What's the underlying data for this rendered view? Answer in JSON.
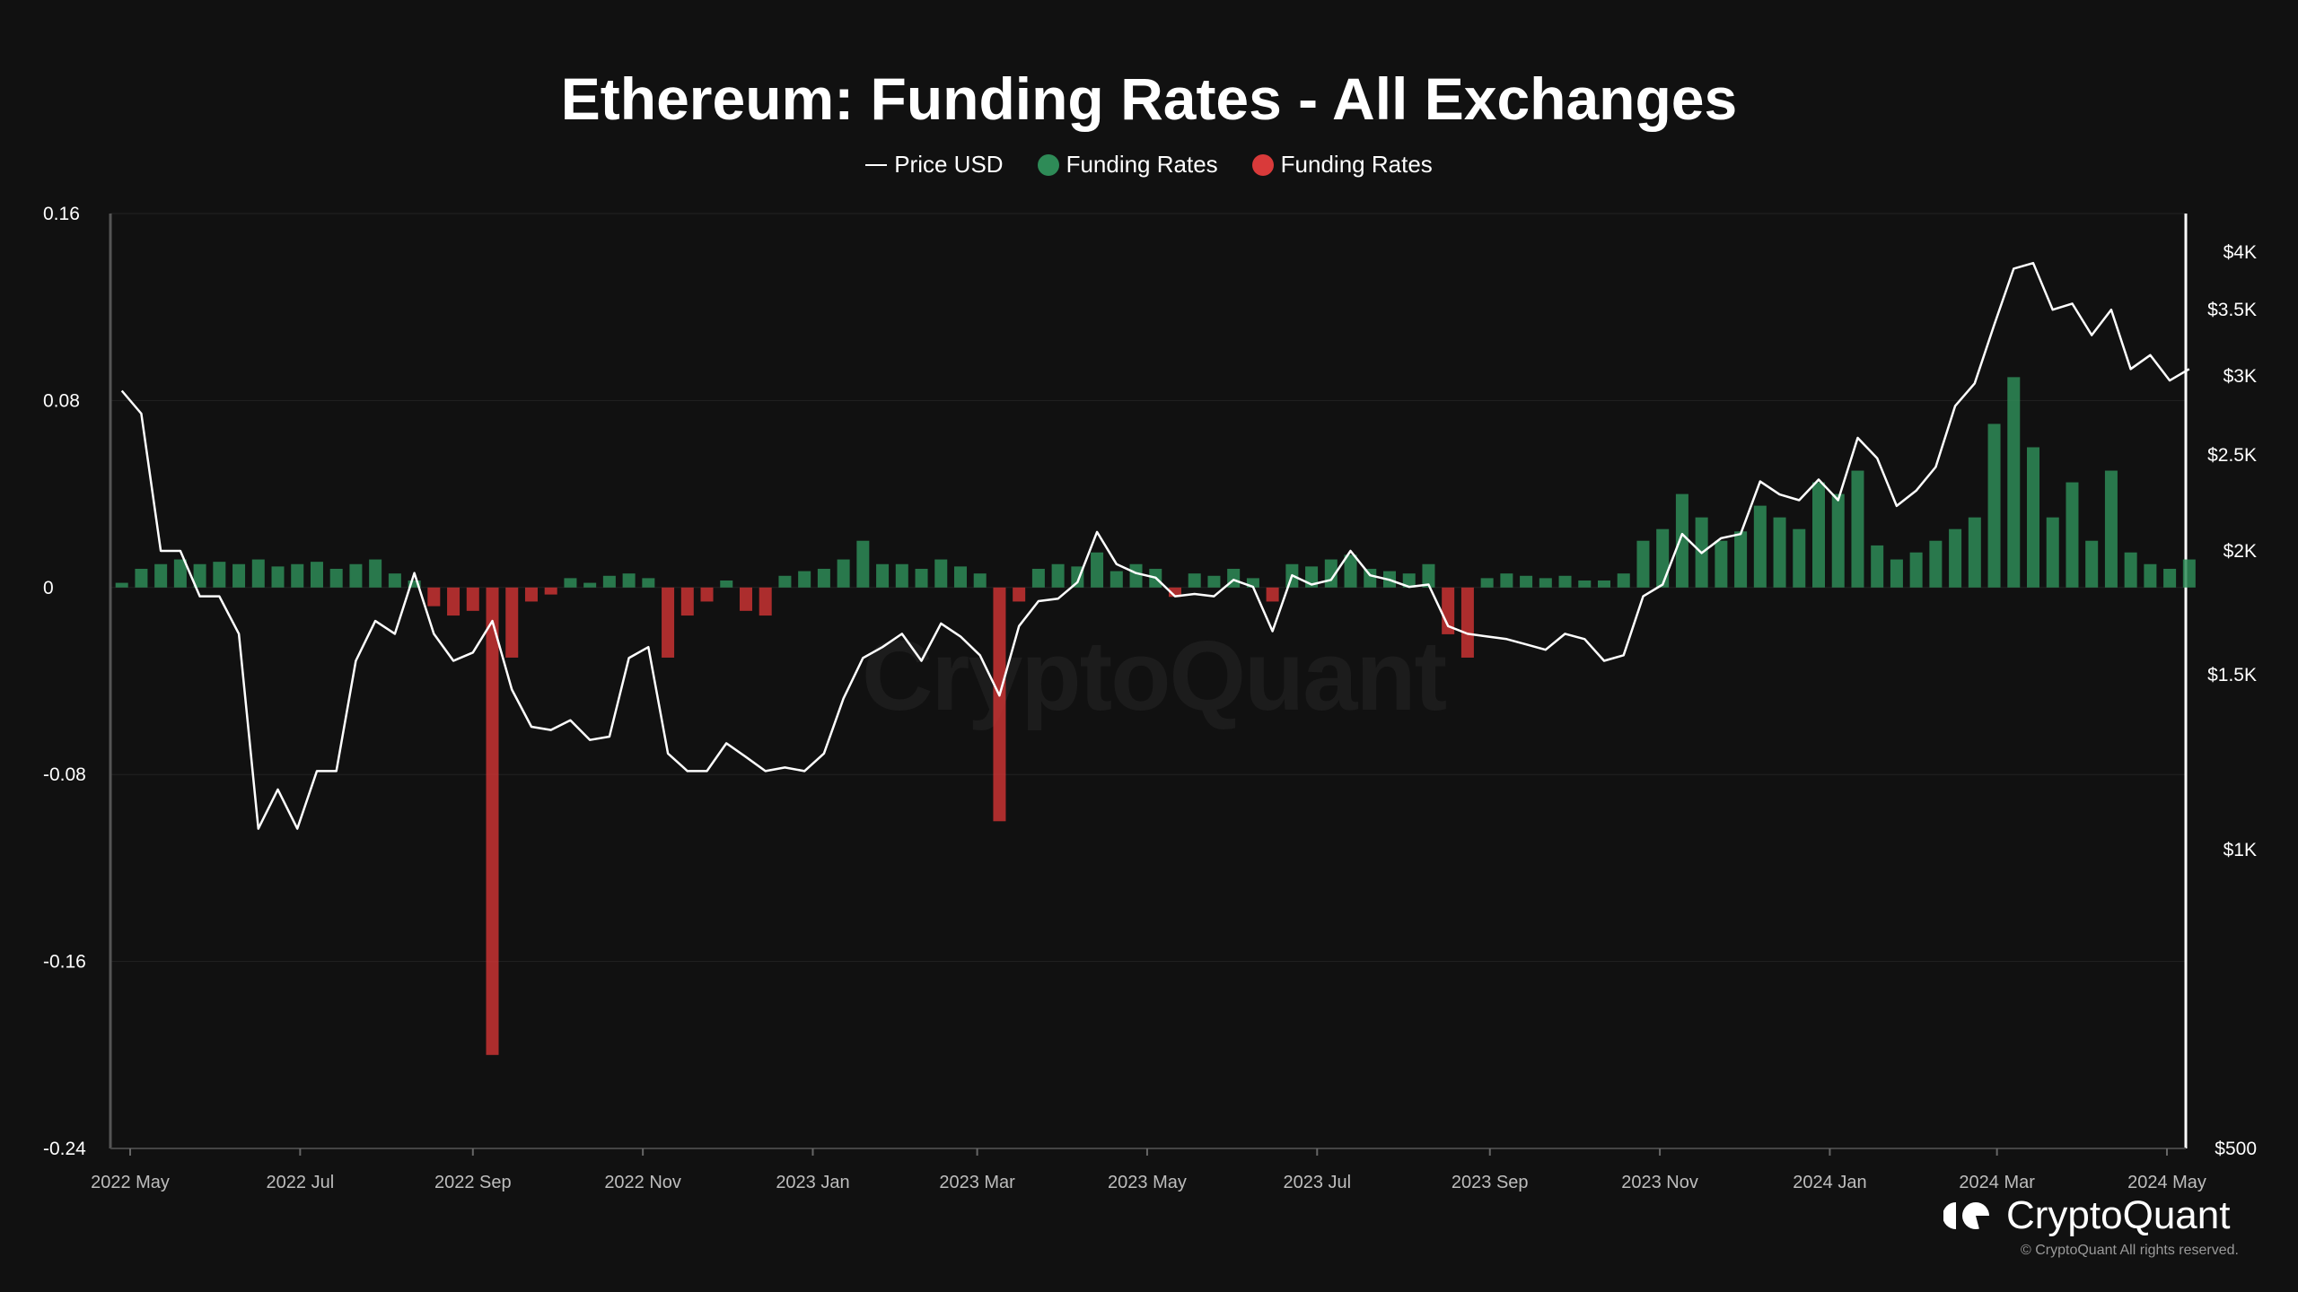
{
  "chart_data": {
    "type": "bar+line",
    "title": "Ethereum: Funding Rates - All Exchanges",
    "legend": [
      {
        "label": "Price USD",
        "color": "#ffffff",
        "kind": "line"
      },
      {
        "label": "Funding Rates",
        "color": "#2e8b57",
        "kind": "dot"
      },
      {
        "label": "Funding Rates",
        "color": "#d93a3a",
        "kind": "dot"
      }
    ],
    "legend_position": "top-center",
    "x_start": "2022-04-28",
    "x_step_days": 7,
    "x_ticks": [
      "2022 May",
      "2022 Jul",
      "2022 Sep",
      "2022 Nov",
      "2023 Jan",
      "2023 Mar",
      "2023 May",
      "2023 Jul",
      "2023 Sep",
      "2023 Nov",
      "2024 Jan",
      "2024 Mar",
      "2024 May"
    ],
    "x_tick_dates": [
      "2022-05-01",
      "2022-07-01",
      "2022-09-01",
      "2022-11-01",
      "2023-01-01",
      "2023-03-01",
      "2023-05-01",
      "2023-07-01",
      "2023-09-01",
      "2023-11-01",
      "2024-01-01",
      "2024-03-01",
      "2024-05-01"
    ],
    "left_axis": {
      "ticks": [
        "0.16",
        "0.08",
        "0",
        "-0.08",
        "-0.16",
        "-0.24"
      ],
      "values": [
        0.16,
        0.08,
        0,
        -0.08,
        -0.16,
        -0.24
      ],
      "ylim": [
        -0.24,
        0.16
      ]
    },
    "right_axis": {
      "scale": "log",
      "ticks": [
        "$4K",
        "$3.5K",
        "$3K",
        "$2.5K",
        "$2K",
        "$1.5K",
        "$1K",
        "$500"
      ],
      "values": [
        4000,
        3500,
        3000,
        2500,
        2000,
        1500,
        1000,
        500
      ],
      "ylim": [
        500,
        4375
      ]
    },
    "grid": true,
    "price_usd": [
      2900,
      2750,
      2000,
      2000,
      1800,
      1800,
      1650,
      1050,
      1150,
      1050,
      1200,
      1200,
      1550,
      1700,
      1650,
      1900,
      1650,
      1550,
      1580,
      1700,
      1450,
      1330,
      1320,
      1350,
      1290,
      1300,
      1560,
      1600,
      1250,
      1200,
      1200,
      1280,
      1240,
      1200,
      1210,
      1200,
      1250,
      1420,
      1560,
      1600,
      1650,
      1550,
      1690,
      1640,
      1570,
      1430,
      1680,
      1780,
      1790,
      1860,
      2090,
      1940,
      1900,
      1880,
      1800,
      1810,
      1800,
      1870,
      1840,
      1660,
      1890,
      1850,
      1870,
      2000,
      1890,
      1870,
      1840,
      1850,
      1680,
      1650,
      1640,
      1630,
      1610,
      1590,
      1650,
      1630,
      1550,
      1570,
      1800,
      1850,
      2080,
      1990,
      2060,
      2080,
      2350,
      2280,
      2250,
      2360,
      2250,
      2600,
      2480,
      2220,
      2300,
      2430,
      2800,
      2950,
      3380,
      3850,
      3900,
      3500,
      3550,
      3300,
      3500,
      3050,
      3150,
      2970,
      3050
    ],
    "funding_rates": [
      0.002,
      0.008,
      0.01,
      0.012,
      0.01,
      0.011,
      0.01,
      0.012,
      0.009,
      0.01,
      0.011,
      0.008,
      0.01,
      0.012,
      0.006,
      0.003,
      -0.008,
      -0.012,
      -0.01,
      -0.2,
      -0.03,
      -0.006,
      -0.003,
      0.004,
      0.002,
      0.005,
      0.006,
      0.004,
      -0.03,
      -0.012,
      -0.006,
      0.003,
      -0.01,
      -0.012,
      0.005,
      0.007,
      0.008,
      0.012,
      0.02,
      0.01,
      0.01,
      0.008,
      0.012,
      0.009,
      0.006,
      -0.1,
      -0.006,
      0.008,
      0.01,
      0.009,
      0.015,
      0.007,
      0.01,
      0.008,
      -0.004,
      0.006,
      0.005,
      0.008,
      0.004,
      -0.006,
      0.01,
      0.009,
      0.012,
      0.014,
      0.008,
      0.007,
      0.006,
      0.01,
      -0.02,
      -0.03,
      0.004,
      0.006,
      0.005,
      0.004,
      0.005,
      0.003,
      0.003,
      0.006,
      0.02,
      0.025,
      0.04,
      0.03,
      0.02,
      0.024,
      0.035,
      0.03,
      0.025,
      0.045,
      0.04,
      0.05,
      0.018,
      0.012,
      0.015,
      0.02,
      0.025,
      0.03,
      0.07,
      0.09,
      0.06,
      0.03,
      0.045,
      0.02,
      0.05,
      0.015,
      0.01,
      0.008,
      0.012
    ]
  },
  "watermark": "CryptoQuant",
  "brand": {
    "name": "CryptoQuant",
    "copyright": "© CryptoQuant All rights reserved."
  }
}
